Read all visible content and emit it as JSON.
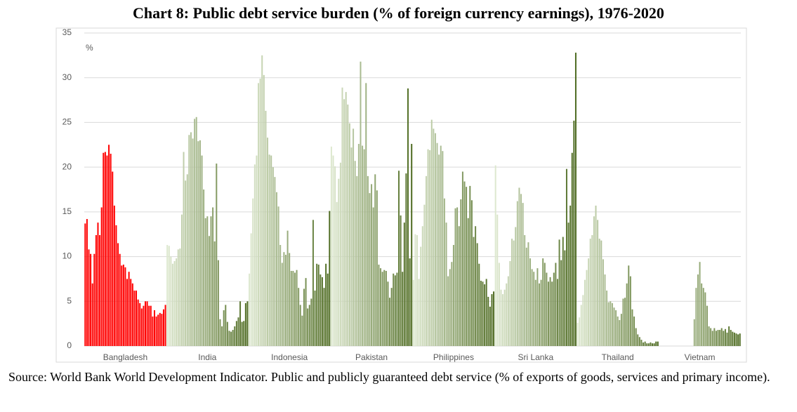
{
  "chart_data": {
    "type": "grouped_bar",
    "title": "Chart 8: Public debt service burden (% of foreign currency earnings), 1976-2020",
    "y_label": "%",
    "source": "Source: World Bank World Development Indicator. Public and publicly guaranteed debt service (% of exports of goods, services and primary income).",
    "ylim": [
      0,
      35
    ],
    "yticks": [
      0,
      5,
      10,
      15,
      20,
      25,
      30,
      35
    ],
    "grid": true,
    "groups": [
      {
        "name": "Bangladesh",
        "color": [
          "#ff0000",
          "#ff0000"
        ],
        "values": [
          13.7,
          14.2,
          10.8,
          10.3,
          7,
          10.3,
          12.4,
          13.8,
          12.4,
          15.5,
          21.6,
          21.7,
          21.3,
          22.5,
          21.5,
          19.5,
          15.7,
          13.5,
          11.5,
          10.3,
          9,
          9.1,
          8.8,
          7.5,
          8.3,
          7.5,
          7,
          6.2,
          6.2,
          5.2,
          4.8,
          4.2,
          4.5,
          5,
          5,
          4.5,
          4.5,
          3.3,
          4,
          3.3,
          3.5,
          3.7,
          3.6,
          4.1,
          4.6
        ]
      },
      {
        "name": "India",
        "color": [
          "#dde8cf",
          "#4e6b21"
        ],
        "values": [
          11.3,
          11.2,
          10,
          9.2,
          9.5,
          9.8,
          10.8,
          10.9,
          14.7,
          21.7,
          18.5,
          19.2,
          23.6,
          23.9,
          23.2,
          25.4,
          25.6,
          22.9,
          23,
          21.3,
          17.5,
          14.3,
          14.5,
          12.3,
          14.5,
          15.5,
          11.7,
          20.4,
          9.6,
          3,
          2.2,
          4,
          4.6,
          2.7,
          1.7,
          1.6,
          1.8,
          2.2,
          2.8,
          3.2,
          5,
          2.7,
          2.8,
          4.8,
          5
        ]
      },
      {
        "name": "Indonesia",
        "color": [
          "#dde8cf",
          "#4e6b21"
        ],
        "values": [
          8.1,
          12.6,
          16.5,
          20.3,
          21.3,
          29.4,
          29.9,
          32.5,
          30.3,
          26.3,
          23.3,
          21.4,
          21.3,
          20,
          18.9,
          17.2,
          15.6,
          11.3,
          9.3,
          10.5,
          10.2,
          12.9,
          10.4,
          8.4,
          8.4,
          8.2,
          8.5,
          6.5,
          4.6,
          3.4,
          6.4,
          7.6,
          4.2,
          4.6,
          5.3,
          14.1,
          6.2,
          9.2,
          9.1,
          8,
          7.7,
          6.5,
          9.2,
          8.1,
          15.1
        ]
      },
      {
        "name": "Pakistan",
        "color": [
          "#dde8cf",
          "#4e6b21"
        ],
        "values": [
          22.3,
          21.3,
          20.1,
          16.1,
          18.7,
          20.5,
          28.9,
          27.6,
          28.4,
          27,
          24.9,
          22.2,
          24.3,
          20.7,
          19,
          22.6,
          31.8,
          22.4,
          22,
          29.4,
          19,
          17.1,
          18.1,
          15.5,
          19.2,
          17.4,
          9.1,
          8.7,
          8.3,
          8.5,
          8.4,
          7.2,
          5.4,
          6.5,
          8.1,
          7.9,
          8.2,
          19.6,
          14.6,
          8.3,
          13.8,
          19.3,
          28.8,
          9.8,
          22.6
        ]
      },
      {
        "name": "Philippines",
        "color": [
          "#dde8cf",
          "#4e6b21"
        ],
        "values": [
          7.4,
          12.5,
          12.4,
          7.5,
          11.1,
          13.4,
          15.8,
          19,
          22,
          21.9,
          25.3,
          24.3,
          23.8,
          22.7,
          21.4,
          22.4,
          21.8,
          16.5,
          13.8,
          7.8,
          8.6,
          9.4,
          11.3,
          15.4,
          15.5,
          13.4,
          16.4,
          19.5,
          18.4,
          17.8,
          14.3,
          17.9,
          16.3,
          12.2,
          13.4,
          11.5,
          9.2,
          7.3,
          7.2,
          6.9,
          7.5,
          5.5,
          4.4,
          5.8,
          6.1
        ]
      },
      {
        "name": "Sri Lanka",
        "color": [
          "#dde8cf",
          "#4e6b21"
        ],
        "values": [
          20.2,
          14.7,
          9.3,
          6.3,
          5.8,
          6.3,
          7,
          7.8,
          9.5,
          12,
          11.8,
          13.3,
          16.2,
          17.7,
          17,
          16,
          12.4,
          11,
          11.6,
          9.8,
          8.6,
          8.3,
          7.4,
          8.7,
          7,
          7.4,
          9.8,
          9.3,
          8.2,
          7.2,
          7.7,
          7.2,
          8.2,
          9.3,
          7.5,
          11.9,
          9.6,
          12.2,
          10.7,
          19.8,
          13.8,
          15.7,
          21.6,
          25.2,
          32.8
        ]
      },
      {
        "name": "Thailand",
        "color": [
          "#dde8cf",
          "#4e6b21"
        ],
        "values": [
          2.6,
          3.2,
          4.6,
          5.7,
          7.4,
          8.5,
          9.8,
          12,
          12.4,
          14.5,
          15.7,
          14.1,
          12,
          11.8,
          9.7,
          8,
          6.2,
          4.9,
          5,
          4.8,
          4.3,
          4,
          3.3,
          2.9,
          3.6,
          5.3,
          5.4,
          7,
          9,
          7.8,
          4.1,
          3.3,
          2,
          1.3,
          1,
          0.7,
          0.4,
          0.5,
          0.3,
          0.3,
          0.4,
          0.3,
          0.3,
          0.5,
          0.5
        ]
      },
      {
        "name": "Vietnam",
        "color": [
          "#dde8cf",
          "#4e6b21"
        ],
        "values": [
          null,
          null,
          null,
          null,
          null,
          null,
          null,
          null,
          null,
          null,
          null,
          null,
          null,
          null,
          null,
          null,
          null,
          null,
          null,
          3,
          6.5,
          8,
          9.4,
          7,
          6.5,
          6,
          4.5,
          2.2,
          2,
          1.7,
          2,
          1.7,
          1.8,
          1.8,
          2,
          1.7,
          1.9,
          1.5,
          2.2,
          1.8,
          1.6,
          1.5,
          1.4,
          1.3,
          1.4
        ]
      }
    ]
  }
}
